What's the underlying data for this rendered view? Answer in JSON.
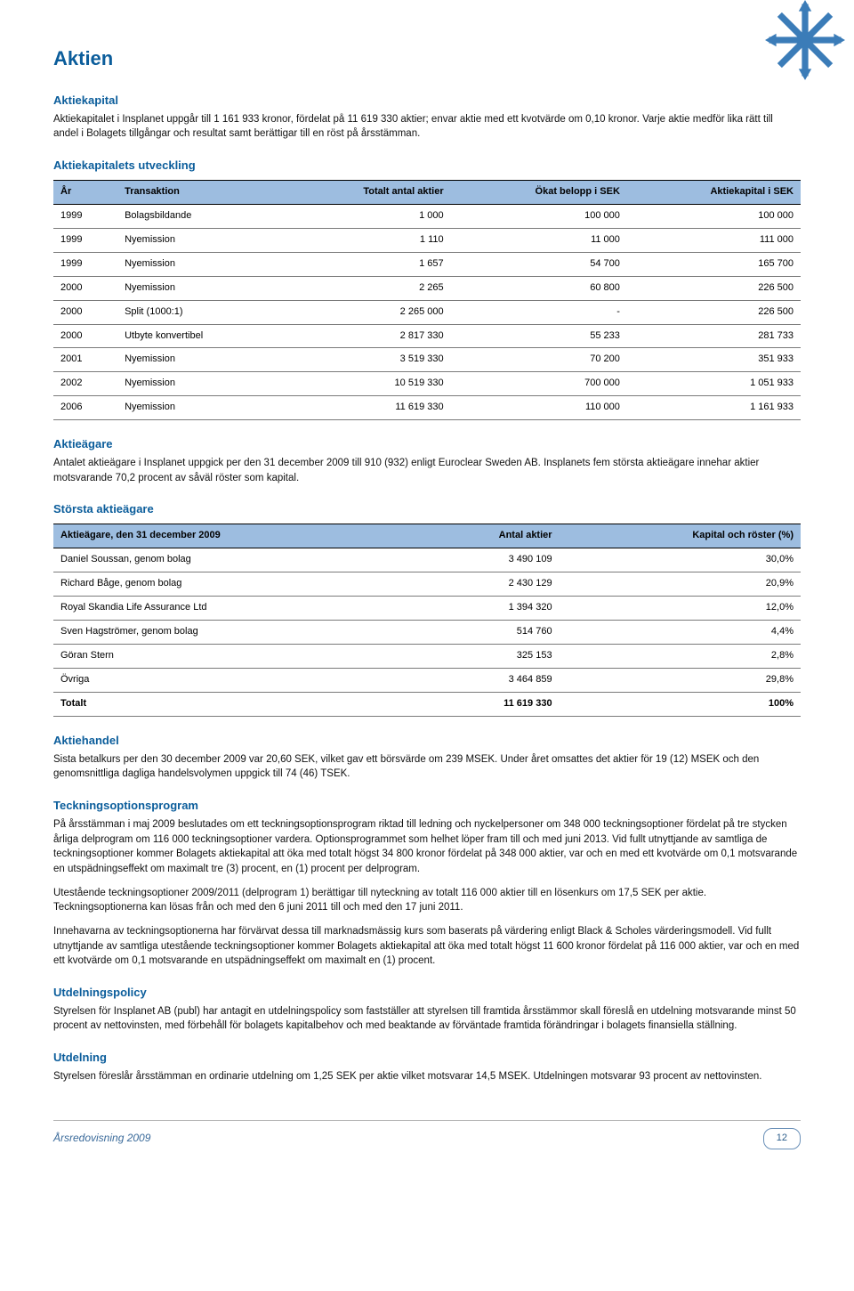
{
  "page": {
    "title": "Aktien",
    "footer_left": "Årsredovisning 2009",
    "page_number": "12"
  },
  "aktiekapital": {
    "heading": "Aktiekapital",
    "text": "Aktiekapitalet i Insplanet uppgår till 1 161 933 kronor, fördelat på 11 619 330 aktier; envar aktie med ett kvotvärde om 0,10 kronor. Varje aktie medför lika rätt till andel i Bolagets tillgångar och resultat samt berättigar till en röst på årsstämman."
  },
  "utveckling": {
    "heading": "Aktiekapitalets utveckling",
    "columns": [
      "År",
      "Transaktion",
      "Totalt antal aktier",
      "Ökat belopp i SEK",
      "Aktiekapital i SEK"
    ],
    "rows": [
      [
        "1999",
        "Bolagsbildande",
        "1 000",
        "100 000",
        "100 000"
      ],
      [
        "1999",
        "Nyemission",
        "1 110",
        "11 000",
        "111 000"
      ],
      [
        "1999",
        "Nyemission",
        "1 657",
        "54 700",
        "165 700"
      ],
      [
        "2000",
        "Nyemission",
        "2 265",
        "60 800",
        "226 500"
      ],
      [
        "2000",
        "Split (1000:1)",
        "2 265 000",
        "-",
        "226 500"
      ],
      [
        "2000",
        "Utbyte konvertibel",
        "2 817 330",
        "55 233",
        "281 733"
      ],
      [
        "2001",
        "Nyemission",
        "3 519 330",
        "70 200",
        "351 933"
      ],
      [
        "2002",
        "Nyemission",
        "10 519 330",
        "700 000",
        "1 051 933"
      ],
      [
        "2006",
        "Nyemission",
        "11 619 330",
        "110 000",
        "1 161 933"
      ]
    ]
  },
  "aktieagare": {
    "heading": "Aktieägare",
    "text": "Antalet aktieägare i Insplanet uppgick per den 31 december 2009 till 910 (932) enligt Euroclear Sweden AB. Insplanets fem största aktieägare innehar aktier motsvarande 70,2 procent av såväl röster som kapital."
  },
  "storsta": {
    "heading": "Största aktieägare",
    "columns": [
      "Aktieägare, den 31 december 2009",
      "Antal aktier",
      "Kapital och röster (%)"
    ],
    "rows": [
      [
        "Daniel Soussan, genom bolag",
        "3 490 109",
        "30,0%"
      ],
      [
        "Richard Båge, genom bolag",
        "2 430 129",
        "20,9%"
      ],
      [
        "Royal Skandia Life Assurance Ltd",
        "1 394 320",
        "12,0%"
      ],
      [
        "Sven Hagströmer, genom bolag",
        "514 760",
        "4,4%"
      ],
      [
        "Göran Stern",
        "325 153",
        "2,8%"
      ],
      [
        "Övriga",
        "3 464 859",
        "29,8%"
      ]
    ],
    "total": [
      "Totalt",
      "11 619 330",
      "100%"
    ]
  },
  "aktiehandel": {
    "heading": "Aktiehandel",
    "text": "Sista betalkurs per den 30 december 2009 var 20,60 SEK, vilket gav ett börsvärde om 239 MSEK. Under året omsattes det aktier för 19 (12) MSEK och den genomsnittliga dagliga handelsvolymen uppgick till 74 (46) TSEK."
  },
  "teckning": {
    "heading": "Teckningsoptionsprogram",
    "p1": "På årsstämman i maj 2009 beslutades om ett teckningsoptionsprogram riktad till ledning och nyckelpersoner om 348 000 teckningsoptioner fördelat på tre stycken årliga delprogram om 116 000 teckningsoptioner vardera. Optionsprogrammet som helhet löper fram till och med juni 2013. Vid fullt utnyttjande av samtliga de teckningsoptioner kommer Bolagets aktiekapital att öka med totalt högst 34 800 kronor fördelat på 348 000 aktier, var och en med ett kvotvärde om 0,1 motsvarande en utspädningseffekt om maximalt tre (3) procent, en (1) procent per delprogram.",
    "p2": "Utestående teckningsoptioner 2009/2011 (delprogram 1) berättigar till nyteckning av totalt 116 000 aktier till en lösenkurs om 17,5 SEK per aktie. Teckningsoptionerna kan lösas från och med den 6 juni 2011 till och med den 17 juni 2011.",
    "p3": "Innehavarna av teckningsoptionerna har förvärvat dessa till marknadsmässig kurs som baserats på värdering enligt Black & Scholes värderingsmodell. Vid fullt utnyttjande av samtliga utestående teckningsoptioner kommer Bolagets aktiekapital att öka med totalt högst 11 600 kronor fördelat på 116 000 aktier, var och en med ett kvotvärde om 0,1 motsvarande en utspädningseffekt om maximalt en (1) procent."
  },
  "utdelningspolicy": {
    "heading": "Utdelningspolicy",
    "text": "Styrelsen för Insplanet AB (publ) har antagit en utdelningspolicy som fastställer att styrelsen till framtida årsstämmor skall föreslå en utdelning motsvarande minst 50 procent av nettovinsten, med förbehåll för bolagets kapitalbehov och med beaktande av förväntade framtida förändringar i bolagets finansiella ställning."
  },
  "utdelning": {
    "heading": "Utdelning",
    "text": "Styrelsen föreslår årsstämman en ordinarie utdelning om 1,25 SEK per aktie vilket motsvarar 14,5 MSEK. Utdelningen motsvarar 93 procent av nettovinsten."
  },
  "logo_color": "#3b7cb8"
}
